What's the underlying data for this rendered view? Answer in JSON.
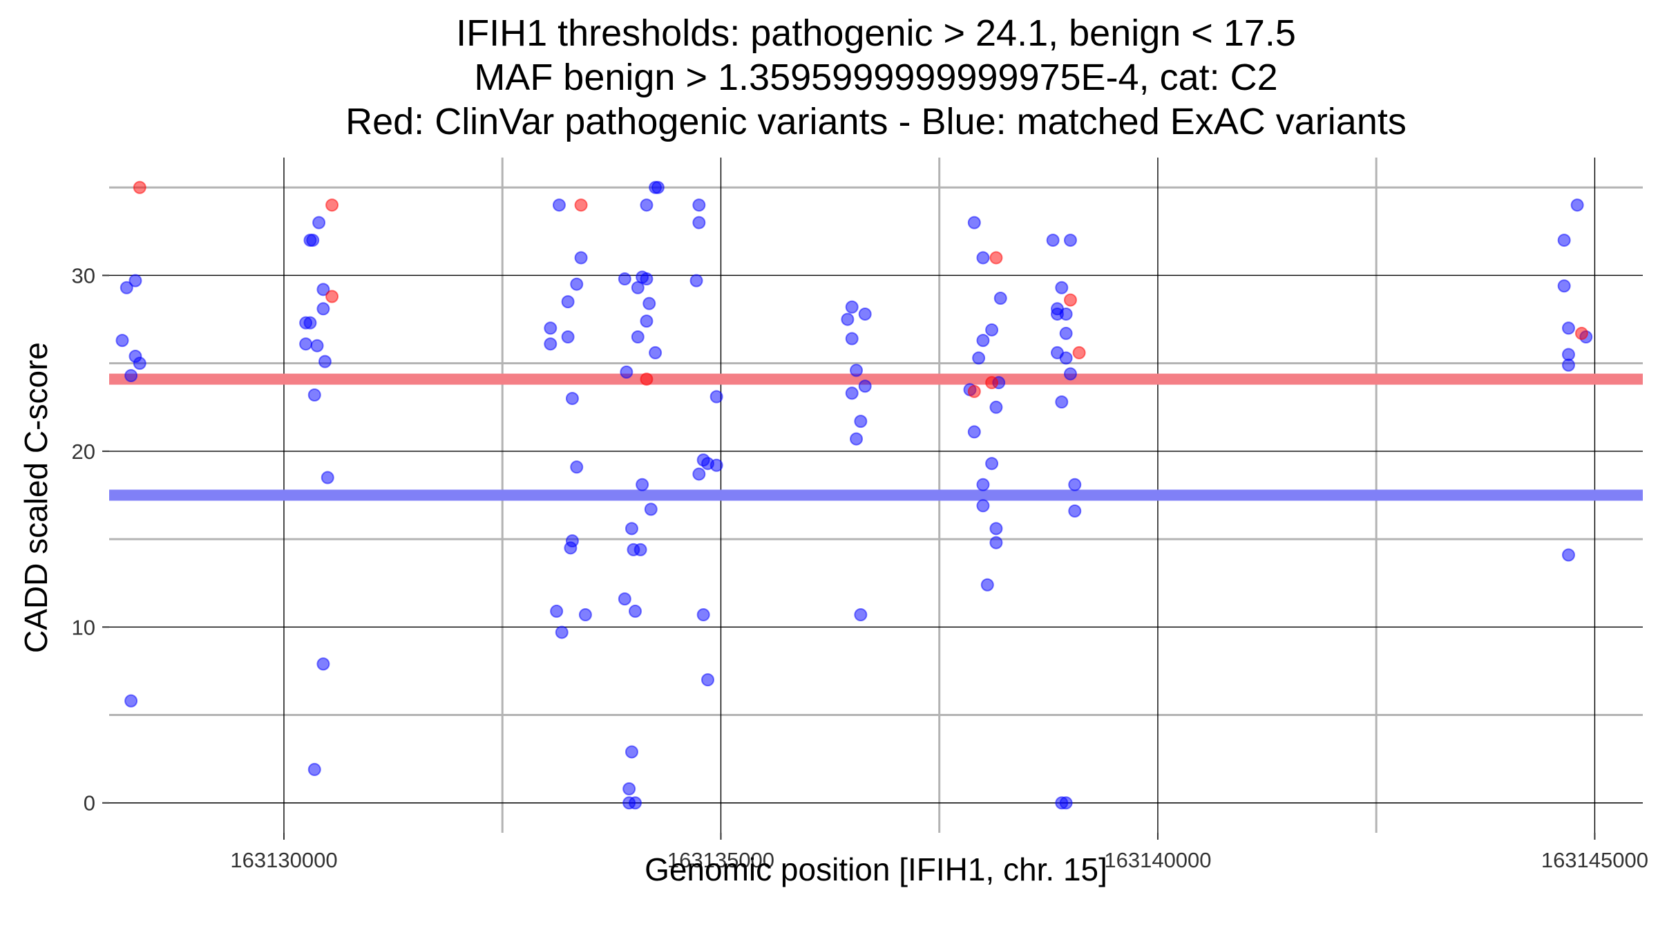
{
  "chart_data": {
    "type": "scatter",
    "title_lines": [
      "IFIH1 thresholds: pathogenic > 24.1, benign < 17.5",
      "MAF benign > 1.3595999999999975E-4, cat: C2",
      "Red: ClinVar pathogenic variants - Blue: matched ExAC variants"
    ],
    "xlabel": "Genomic position [IFIH1, chr. 15]",
    "ylabel": "CADD scaled C-score",
    "xlim": [
      163128000,
      163145550
    ],
    "ylim": [
      -1.7,
      36.7
    ],
    "x_ticks": [
      163130000,
      163135000,
      163140000,
      163145000
    ],
    "x_tick_labels": [
      "163130000",
      "163135000",
      "163140000",
      "163145000"
    ],
    "y_ticks": [
      0,
      10,
      20,
      30
    ],
    "y_tick_labels": [
      "0",
      "10",
      "20",
      "30"
    ],
    "thresholds": [
      {
        "value": 24.1,
        "color": "#f47f86"
      },
      {
        "value": 17.5,
        "color": "#8080f7"
      }
    ],
    "grid": true,
    "point_colors": {
      "pathogenic": "#ff0000",
      "benign": "#0000ff"
    },
    "series": [
      {
        "color": "#0000ff",
        "points": [
          [
            163128200,
            29.3
          ],
          [
            163128300,
            29.7
          ],
          [
            163128150,
            26.3
          ],
          [
            163128300,
            25.4
          ],
          [
            163128350,
            25.0
          ],
          [
            163128250,
            24.3
          ],
          [
            163128250,
            5.8
          ],
          [
            163130300,
            32.0
          ],
          [
            163130330,
            32.0
          ],
          [
            163130400,
            33.0
          ],
          [
            163130250,
            27.3
          ],
          [
            163130300,
            27.3
          ],
          [
            163130250,
            26.1
          ],
          [
            163130380,
            26.0
          ],
          [
            163130450,
            29.2
          ],
          [
            163130450,
            28.1
          ],
          [
            163130470,
            25.1
          ],
          [
            163130350,
            23.2
          ],
          [
            163130500,
            18.5
          ],
          [
            163130450,
            7.9
          ],
          [
            163130350,
            1.9
          ],
          [
            163133150,
            34.0
          ],
          [
            163133050,
            27.0
          ],
          [
            163133250,
            26.5
          ],
          [
            163133050,
            26.1
          ],
          [
            163133250,
            28.5
          ],
          [
            163133350,
            29.5
          ],
          [
            163133400,
            31.0
          ],
          [
            163133300,
            23.0
          ],
          [
            163133350,
            19.1
          ],
          [
            163133300,
            14.9
          ],
          [
            163133280,
            14.5
          ],
          [
            163133120,
            10.9
          ],
          [
            163133450,
            10.7
          ],
          [
            163133180,
            9.7
          ],
          [
            163133900,
            29.8
          ],
          [
            163134050,
            29.3
          ],
          [
            163134100,
            29.9
          ],
          [
            163134150,
            29.8
          ],
          [
            163134180,
            28.4
          ],
          [
            163134150,
            27.4
          ],
          [
            163134050,
            26.5
          ],
          [
            163134250,
            25.6
          ],
          [
            163133920,
            24.5
          ],
          [
            163134100,
            18.1
          ],
          [
            163134200,
            16.7
          ],
          [
            163133980,
            15.6
          ],
          [
            163134000,
            14.4
          ],
          [
            163134080,
            14.4
          ],
          [
            163133900,
            11.6
          ],
          [
            163134020,
            10.9
          ],
          [
            163133950,
            0.8
          ],
          [
            163133980,
            2.9
          ],
          [
            163133950,
            0.0
          ],
          [
            163134020,
            0.0
          ],
          [
            163134150,
            34.0
          ],
          [
            163134250,
            35.0
          ],
          [
            163134280,
            35.0
          ],
          [
            163134750,
            34.0
          ],
          [
            163134750,
            33.0
          ],
          [
            163134720,
            29.7
          ],
          [
            163134950,
            23.1
          ],
          [
            163134800,
            19.5
          ],
          [
            163134850,
            19.3
          ],
          [
            163134950,
            19.2
          ],
          [
            163134750,
            18.7
          ],
          [
            163134800,
            10.7
          ],
          [
            163134850,
            7.0
          ],
          [
            163136500,
            28.2
          ],
          [
            163136650,
            27.8
          ],
          [
            163136450,
            27.5
          ],
          [
            163136500,
            26.4
          ],
          [
            163136550,
            24.6
          ],
          [
            163136650,
            23.7
          ],
          [
            163136500,
            23.3
          ],
          [
            163136600,
            21.7
          ],
          [
            163136550,
            20.7
          ],
          [
            163136600,
            10.7
          ],
          [
            163137900,
            33.0
          ],
          [
            163138000,
            31.0
          ],
          [
            163138200,
            28.7
          ],
          [
            163138100,
            26.9
          ],
          [
            163138000,
            26.3
          ],
          [
            163137950,
            25.3
          ],
          [
            163137850,
            23.5
          ],
          [
            163138150,
            22.5
          ],
          [
            163137900,
            21.1
          ],
          [
            163138100,
            19.3
          ],
          [
            163138000,
            18.1
          ],
          [
            163138000,
            16.9
          ],
          [
            163138150,
            15.6
          ],
          [
            163138150,
            14.8
          ],
          [
            163138050,
            12.4
          ],
          [
            163138180,
            23.9
          ],
          [
            163138800,
            32.0
          ],
          [
            163139000,
            32.0
          ],
          [
            163138900,
            29.3
          ],
          [
            163138850,
            28.1
          ],
          [
            163138850,
            27.8
          ],
          [
            163138950,
            27.8
          ],
          [
            163138950,
            26.7
          ],
          [
            163138850,
            25.6
          ],
          [
            163138950,
            25.3
          ],
          [
            163139000,
            24.4
          ],
          [
            163138900,
            22.8
          ],
          [
            163139050,
            18.1
          ],
          [
            163139050,
            16.6
          ],
          [
            163138900,
            0.0
          ],
          [
            163138950,
            0.0
          ],
          [
            163144650,
            32.0
          ],
          [
            163144650,
            29.4
          ],
          [
            163144700,
            27.0
          ],
          [
            163144800,
            34.0
          ],
          [
            163144700,
            25.5
          ],
          [
            163144700,
            24.9
          ],
          [
            163144900,
            26.5
          ],
          [
            163144700,
            14.1
          ]
        ]
      },
      {
        "color": "#ff0000",
        "points": [
          [
            163128350,
            35.0
          ],
          [
            163130550,
            34.0
          ],
          [
            163130550,
            28.8
          ],
          [
            163133400,
            34.0
          ],
          [
            163134150,
            24.1
          ],
          [
            163138150,
            31.0
          ],
          [
            163137900,
            23.4
          ],
          [
            163138100,
            23.9
          ],
          [
            163139000,
            28.6
          ],
          [
            163139100,
            25.6
          ],
          [
            163144850,
            26.7
          ]
        ]
      }
    ]
  }
}
